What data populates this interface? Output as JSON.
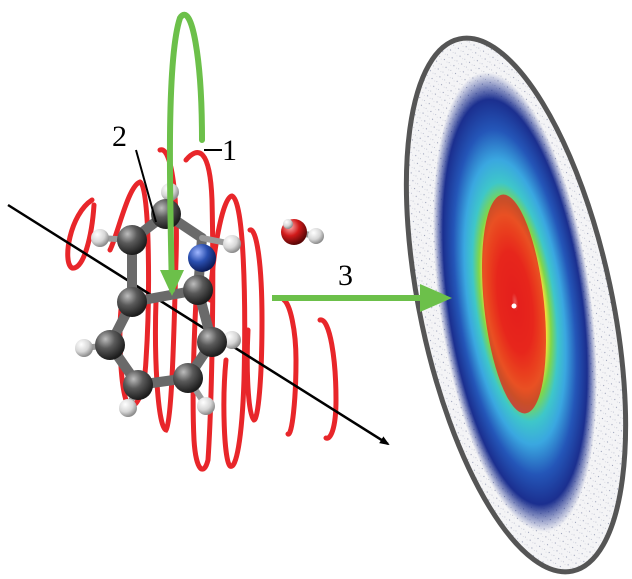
{
  "labels": {
    "one": "1",
    "two": "2",
    "three": "3"
  },
  "colors": {
    "laser_wave": "#e8262a",
    "probe_arrow": "#6cc04a",
    "axis_line": "#000000",
    "carbon": "#4a4a4a",
    "hydrogen": "#e8e8e8",
    "nitrogen": "#2a4fb0",
    "oxygen": "#d11a1a",
    "bond": "#6a6a6a",
    "detector_rim": "#555555",
    "image_outer": "#1b2f8f",
    "image_mid": "#3aa7e0",
    "image_inner_green": "#7fd64a",
    "image_yellow": "#f6e03a",
    "image_core": "#e4201c"
  },
  "icons": {
    "molecule": "indole-water-cluster-icon",
    "detector": "velocity-map-image-icon"
  }
}
